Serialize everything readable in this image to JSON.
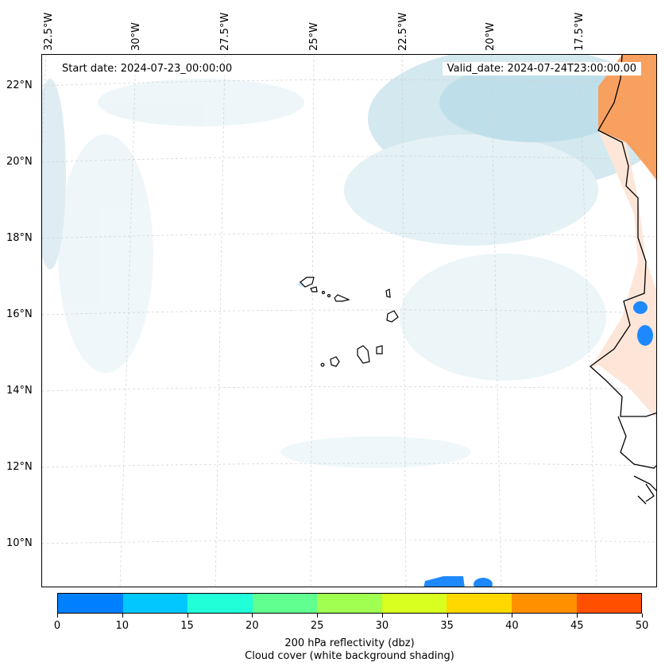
{
  "map": {
    "start_date": "Start date: 2024-07-23_00:00:00",
    "valid_date": "Valid_date: 2024-07-24T23:00:00.00",
    "lon_labels": [
      "32.5°W",
      "30°W",
      "27.5°W",
      "25°W",
      "22.5°W",
      "20°W",
      "17.5°W"
    ],
    "lat_labels": [
      "22°N",
      "20°N",
      "18°N",
      "16°N",
      "14°N",
      "12°N",
      "10°N"
    ]
  },
  "colorbar": {
    "ticks": [
      "0",
      "10",
      "15",
      "20",
      "25",
      "30",
      "35",
      "40",
      "45",
      "50"
    ],
    "colors": [
      "#0080ff",
      "#00c8ff",
      "#20ffd8",
      "#60ff90",
      "#a0ff50",
      "#d8ff20",
      "#ffd800",
      "#ff9000",
      "#ff5000"
    ],
    "label": "200 hPa reflectivity (dbz)",
    "sublabel": "Cloud cover (white background shading)"
  }
}
